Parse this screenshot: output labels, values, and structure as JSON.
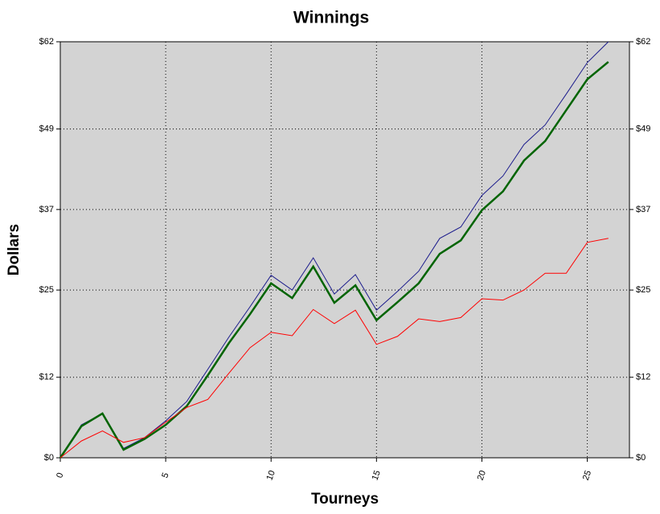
{
  "chart_data": {
    "type": "line",
    "title": "Winnings",
    "xlabel": "Tourneys",
    "ylabel": "Dollars",
    "x": [
      0,
      1,
      2,
      3,
      4,
      5,
      6,
      7,
      8,
      9,
      10,
      11,
      12,
      13,
      14,
      15,
      16,
      17,
      18,
      19,
      20,
      21,
      22,
      23,
      24,
      25,
      26
    ],
    "series": [
      {
        "color": "#1a1a8c",
        "line_width": 1,
        "values": [
          0,
          4.9,
          6.6,
          1.4,
          3.0,
          5.5,
          8.4,
          13.2,
          18.0,
          22.5,
          27.2,
          25.0,
          29.8,
          24.4,
          27.3,
          22.0,
          24.8,
          27.8,
          32.7,
          34.4,
          39.1,
          42.0,
          46.7,
          49.6,
          54.2,
          58.9,
          62.0
        ]
      },
      {
        "color": "#006400",
        "line_width": 2.5,
        "values": [
          0,
          4.7,
          6.6,
          1.2,
          2.8,
          4.9,
          7.7,
          12.3,
          17.1,
          21.4,
          26.0,
          23.8,
          28.5,
          23.1,
          25.7,
          20.5,
          23.2,
          26.0,
          30.4,
          32.4,
          36.9,
          39.7,
          44.3,
          47.2,
          51.8,
          56.4,
          59.0
        ]
      },
      {
        "color": "#ff0000",
        "line_width": 1,
        "values": [
          0,
          2.5,
          4.0,
          2.3,
          3.0,
          5.3,
          7.5,
          8.7,
          12.6,
          16.4,
          18.7,
          18.2,
          22.1,
          20.0,
          22.0,
          16.9,
          18.1,
          20.7,
          20.3,
          20.9,
          23.7,
          23.5,
          25.0,
          27.5,
          27.5,
          32.1,
          32.7
        ]
      }
    ],
    "xlim": [
      0,
      27
    ],
    "xticks": [
      0,
      5,
      10,
      15,
      20,
      25
    ],
    "ylim": [
      0,
      62
    ],
    "yticks": [
      {
        "value": 0,
        "label": "$0"
      },
      {
        "value": 12,
        "label": "$12"
      },
      {
        "value": 25,
        "label": "$25"
      },
      {
        "value": 37,
        "label": "$37"
      },
      {
        "value": 49,
        "label": "$49"
      },
      {
        "value": 62,
        "label": "$62"
      }
    ],
    "grid": true,
    "plot_background": "#d3d3d3"
  }
}
